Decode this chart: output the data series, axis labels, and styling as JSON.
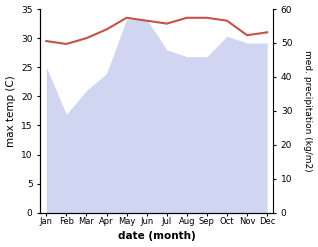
{
  "months": [
    "Jan",
    "Feb",
    "Mar",
    "Apr",
    "May",
    "Jun",
    "Jul",
    "Aug",
    "Sep",
    "Oct",
    "Nov",
    "Dec"
  ],
  "month_positions": [
    0,
    1,
    2,
    3,
    4,
    5,
    6,
    7,
    8,
    9,
    10,
    11
  ],
  "max_temp": [
    29.5,
    29.0,
    30.0,
    31.5,
    33.5,
    33.0,
    32.5,
    33.5,
    33.5,
    33.0,
    30.5,
    31.0
  ],
  "precipitation": [
    43,
    29,
    36,
    41,
    57,
    57,
    48,
    46,
    46,
    52,
    50,
    50
  ],
  "temp_color": "#c8504a",
  "precip_color": "#aab4e8",
  "temp_ylim": [
    0,
    35
  ],
  "precip_ylim": [
    0,
    60
  ],
  "xlabel": "date (month)",
  "ylabel_left": "max temp (C)",
  "ylabel_right": "med. precipitation (kg/m2)",
  "bg_color": "#ffffff",
  "temp_linewidth": 1.5,
  "precip_alpha": 0.55
}
